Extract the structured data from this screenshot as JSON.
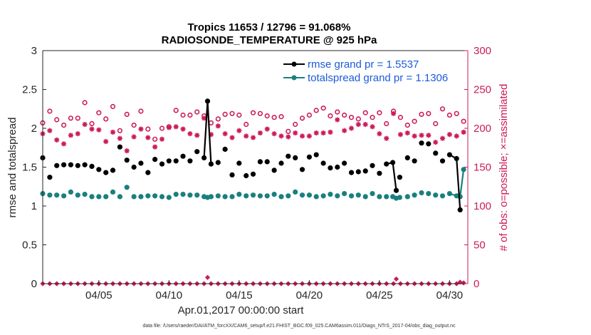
{
  "chart_data": {
    "type": "line",
    "title_line1": "Tropics 11653 / 12796 = 91.068%",
    "title_line2": "RADIOSONDE_TEMPERATURE @ 925 hPa",
    "xlabel": "Apr.01,2017 00:00:00 start",
    "ylabel": "rmse and totalspread",
    "ylabel_right": "# of obs: o=possible; ×=assimilated",
    "xlim": [
      1,
      31.3
    ],
    "ylim": [
      0,
      3
    ],
    "ylim_right": [
      0,
      300
    ],
    "yticks": [
      "0",
      "0.5",
      "1",
      "1.5",
      "2",
      "2.5",
      "3"
    ],
    "yticks_right": [
      "0",
      "50",
      "100",
      "150",
      "200",
      "250",
      "300"
    ],
    "xticks": [
      {
        "value": 5,
        "label": "04/05"
      },
      {
        "value": 10,
        "label": "04/10"
      },
      {
        "value": 15,
        "label": "04/15"
      },
      {
        "value": 20,
        "label": "04/20"
      },
      {
        "value": 25,
        "label": "04/25"
      },
      {
        "value": 30,
        "label": "04/30"
      }
    ],
    "legend": {
      "position": "top-right"
    },
    "series": [
      {
        "name": "rmse grand pr = 1.5537",
        "color": "#000000",
        "x": [
          1.0,
          1.5,
          2.0,
          2.5,
          3.0,
          3.5,
          4.0,
          4.5,
          5.0,
          5.5,
          6.0,
          6.5,
          7.0,
          7.5,
          8.0,
          8.5,
          9.0,
          9.5,
          10.0,
          10.5,
          11.0,
          11.5,
          12.0,
          12.5,
          12.75,
          13.0,
          13.5,
          14.0,
          14.5,
          15.0,
          15.5,
          16.0,
          16.5,
          17.0,
          17.5,
          18.0,
          18.5,
          19.0,
          19.5,
          20.0,
          20.5,
          21.0,
          21.5,
          22.0,
          22.5,
          23.0,
          23.5,
          24.0,
          24.5,
          25.0,
          25.5,
          25.95,
          26.2,
          26.45,
          27.0,
          27.5,
          28.0,
          28.5,
          29.0,
          29.5,
          30.0,
          30.5,
          30.75,
          31.0
        ],
        "values": [
          1.62,
          1.37,
          1.52,
          1.53,
          1.53,
          1.52,
          1.53,
          1.51,
          1.47,
          1.43,
          1.46,
          1.76,
          1.59,
          1.5,
          1.55,
          1.43,
          1.6,
          1.54,
          1.58,
          1.58,
          1.64,
          1.58,
          1.7,
          1.62,
          2.35,
          1.54,
          1.56,
          1.73,
          1.4,
          1.55,
          1.39,
          1.41,
          1.57,
          1.57,
          1.46,
          1.55,
          1.64,
          1.62,
          1.47,
          1.63,
          1.66,
          1.55,
          1.49,
          1.5,
          1.55,
          1.43,
          1.44,
          1.45,
          1.52,
          1.42,
          1.54,
          1.56,
          1.2,
          1.37,
          1.62,
          1.58,
          1.81,
          1.8,
          1.68,
          1.58,
          1.66,
          1.61,
          0.95,
          null
        ],
        "connected_segments": [
          [
            23,
            25
          ],
          [
            50,
            52
          ],
          [
            60,
            62
          ]
        ]
      },
      {
        "name": "totalspread grand pr = 1.1306",
        "color": "#1a7f7f",
        "x": [
          1.0,
          1.5,
          2.0,
          2.5,
          3.0,
          3.5,
          4.0,
          4.5,
          5.0,
          5.5,
          6.0,
          6.5,
          7.0,
          7.5,
          8.0,
          8.5,
          9.0,
          9.5,
          10.0,
          10.5,
          11.0,
          11.5,
          12.0,
          12.5,
          12.75,
          13.0,
          13.5,
          14.0,
          14.5,
          15.0,
          15.5,
          16.0,
          16.5,
          17.0,
          17.5,
          18.0,
          18.5,
          19.0,
          19.5,
          20.0,
          20.5,
          21.0,
          21.5,
          22.0,
          22.5,
          23.0,
          23.5,
          24.0,
          24.5,
          25.0,
          25.5,
          25.95,
          26.2,
          26.45,
          27.0,
          27.5,
          28.0,
          28.5,
          29.0,
          29.5,
          30.0,
          30.5,
          30.75,
          31.0
        ],
        "values": [
          1.16,
          1.14,
          1.14,
          1.13,
          1.18,
          1.14,
          1.15,
          1.12,
          1.12,
          1.12,
          1.18,
          1.12,
          1.24,
          1.12,
          1.12,
          1.13,
          1.13,
          1.12,
          1.11,
          1.15,
          1.15,
          1.14,
          1.14,
          1.12,
          1.11,
          1.12,
          1.13,
          1.12,
          1.12,
          1.15,
          1.13,
          1.14,
          1.13,
          1.13,
          1.15,
          1.12,
          1.13,
          1.18,
          1.14,
          1.14,
          1.12,
          1.13,
          1.15,
          1.13,
          1.16,
          1.13,
          1.14,
          1.12,
          1.16,
          1.12,
          1.12,
          1.12,
          1.1,
          1.11,
          1.12,
          1.14,
          1.17,
          1.16,
          1.14,
          1.13,
          1.16,
          1.13,
          1.12,
          1.47
        ],
        "connected_segments": [
          [
            60,
            63
          ]
        ]
      },
      {
        "name": "obs possible",
        "marker": "circle",
        "axis": "right",
        "color": "#cc1a5a",
        "x": [
          1.0,
          1.5,
          2.0,
          2.5,
          3.0,
          3.5,
          4.0,
          4.5,
          5.0,
          5.5,
          6.0,
          6.5,
          7.0,
          7.5,
          8.0,
          8.5,
          9.0,
          9.5,
          10.0,
          10.5,
          11.0,
          11.5,
          12.0,
          12.5,
          13.0,
          13.5,
          14.0,
          14.5,
          15.0,
          15.5,
          16.0,
          16.5,
          17.0,
          17.5,
          18.0,
          18.5,
          19.0,
          19.5,
          20.0,
          20.5,
          21.0,
          21.5,
          22.0,
          22.5,
          23.0,
          23.5,
          24.0,
          24.5,
          25.0,
          25.5,
          26.0,
          26.5,
          27.0,
          27.5,
          28.0,
          28.5,
          29.0,
          29.5,
          30.0,
          30.5,
          31.0
        ],
        "values": [
          207,
          222,
          211,
          204,
          213,
          213,
          233,
          206,
          220,
          212,
          228,
          197,
          218,
          204,
          222,
          199,
          186,
          200,
          202,
          223,
          217,
          217,
          221,
          216,
          207,
          212,
          218,
          219,
          217,
          205,
          220,
          219,
          216,
          214,
          215,
          196,
          205,
          213,
          217,
          223,
          226,
          216,
          221,
          217,
          214,
          212,
          220,
          214,
          220,
          206,
          222,
          214,
          204,
          209,
          218,
          219,
          206,
          225,
          217,
          219,
          209
        ]
      },
      {
        "name": "obs assimilated",
        "marker": "asterisk",
        "axis": "right",
        "color": "#cc1a5a",
        "x": [
          1.0,
          1.5,
          2.0,
          2.5,
          3.0,
          3.5,
          4.0,
          4.5,
          5.0,
          5.5,
          6.0,
          6.5,
          7.0,
          7.5,
          8.0,
          8.5,
          9.0,
          9.5,
          10.0,
          10.5,
          11.0,
          11.5,
          12.0,
          12.5,
          13.0,
          13.5,
          14.0,
          14.5,
          15.0,
          15.5,
          16.0,
          16.5,
          17.0,
          17.5,
          18.0,
          18.5,
          19.0,
          19.5,
          20.0,
          20.5,
          21.0,
          21.5,
          22.0,
          22.5,
          23.0,
          23.5,
          24.0,
          24.5,
          25.0,
          25.5,
          26.0,
          26.5,
          27.0,
          27.5,
          28.0,
          28.5,
          29.0,
          29.5,
          30.0,
          30.5,
          31.0
        ],
        "values": [
          193,
          197,
          185,
          180,
          191,
          193,
          205,
          199,
          198,
          183,
          195,
          187,
          171,
          189,
          199,
          188,
          176,
          186,
          201,
          202,
          199,
          193,
          191,
          213,
          192,
          203,
          193,
          188,
          197,
          190,
          188,
          194,
          199,
          193,
          190,
          189,
          194,
          190,
          190,
          194,
          194,
          195,
          211,
          197,
          200,
          205,
          205,
          202,
          193,
          187,
          219,
          192,
          194,
          190,
          191,
          191,
          182,
          187,
          192,
          190,
          195
        ]
      },
      {
        "name": "obs count near zero",
        "marker": "diamond",
        "axis": "right",
        "color": "#cc1a5a",
        "x": [
          1.0,
          1.5,
          2.0,
          2.5,
          3.0,
          3.5,
          4.0,
          4.5,
          5.0,
          5.5,
          6.0,
          6.5,
          7.0,
          7.5,
          8.0,
          8.5,
          9.0,
          9.5,
          10.0,
          10.5,
          11.0,
          11.5,
          12.0,
          12.5,
          12.75,
          13.0,
          13.5,
          14.0,
          14.5,
          15.0,
          15.5,
          16.0,
          16.5,
          17.0,
          17.5,
          18.0,
          18.5,
          19.0,
          19.5,
          20.0,
          20.5,
          21.0,
          21.5,
          22.0,
          22.5,
          23.0,
          23.5,
          24.0,
          24.5,
          25.0,
          25.5,
          26.0,
          26.2,
          26.5,
          27.0,
          27.5,
          28.0,
          28.5,
          29.0,
          29.5,
          30.0,
          30.5,
          30.75,
          31.0
        ],
        "values": [
          0,
          0,
          0,
          0,
          0,
          0,
          0,
          0,
          0,
          0,
          0,
          0,
          0,
          0,
          0,
          0,
          0,
          0,
          0,
          0,
          0,
          0,
          0,
          0,
          8,
          0,
          0,
          0,
          0,
          0,
          0,
          0,
          0,
          0,
          0,
          0,
          0,
          0,
          0,
          0,
          0,
          0,
          0,
          0,
          0,
          0,
          0,
          0,
          0,
          0,
          0,
          0,
          6,
          0,
          0,
          0,
          0,
          0,
          0,
          0,
          0,
          0,
          2,
          1
        ]
      }
    ]
  },
  "footer": {
    "data_file": "data file: /Users/raeder/DAI/ATM_forcXX/CAM6_setup/f.e21.FHIST_BGC.f09_025.CAM6assim.011/Diags_NTrS_2017-04/obs_diag_output.nc"
  },
  "colors": {
    "accent_magenta": "#cc1a5a",
    "legend_blue": "#1c5bd8",
    "teal": "#1a7f7f"
  }
}
